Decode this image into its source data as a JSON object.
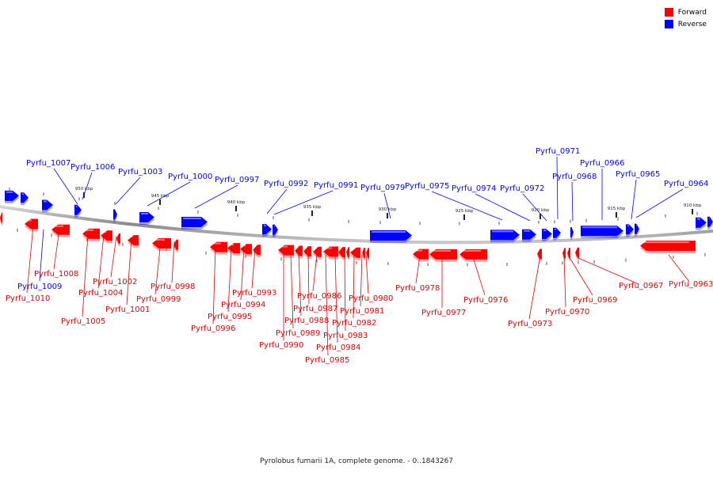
{
  "legend": {
    "forward": {
      "label": "Forward",
      "color": "#ff0000"
    },
    "reverse": {
      "label": "Reverse",
      "color": "#0000ff"
    }
  },
  "caption": "Pyrolobus fumarii 1A, complete genome. - 0..1843267",
  "scale_labels": [
    "950 kbp",
    "945 kbp",
    "940 kbp",
    "935 kbp",
    "930 kbp",
    "925 kbp",
    "920 kbp",
    "915 kbp",
    "910 kbp"
  ],
  "reverse_labels": [
    "Pyrfu_1007",
    "Pyrfu_1006",
    "Pyrfu_1003",
    "Pyrfu_1000",
    "Pyrfu_0997",
    "Pyrfu_0992",
    "Pyrfu_0991",
    "Pyrfu_0979",
    "Pyrfu_0975",
    "Pyrfu_0974",
    "Pyrfu_0972",
    "Pyrfu_0971",
    "Pyrfu_0968",
    "Pyrfu_0966",
    "Pyrfu_0965",
    "Pyrfu_0964",
    "Pyrfu_1009"
  ],
  "forward_labels": [
    "Pyrfu_1008",
    "Pyrfu_1010",
    "Pyrfu_1002",
    "Pyrfu_1004",
    "Pyrfu_1005",
    "Pyrfu_1001",
    "Pyrfu_0998",
    "Pyrfu_0999",
    "Pyrfu_0993",
    "Pyrfu_0994",
    "Pyrfu_0995",
    "Pyrfu_0996",
    "Pyrfu_0986",
    "Pyrfu_0987",
    "Pyrfu_0988",
    "Pyrfu_0989",
    "Pyrfu_0990",
    "Pyrfu_0980",
    "Pyrfu_0981",
    "Pyrfu_0982",
    "Pyrfu_0983",
    "Pyrfu_0984",
    "Pyrfu_0985",
    "Pyrfu_0978",
    "Pyrfu_0977",
    "Pyrfu_0976",
    "Pyrfu_0973",
    "Pyrfu_0970",
    "Pyrfu_0969",
    "Pyrfu_0967",
    "Pyrfu_0963"
  ]
}
